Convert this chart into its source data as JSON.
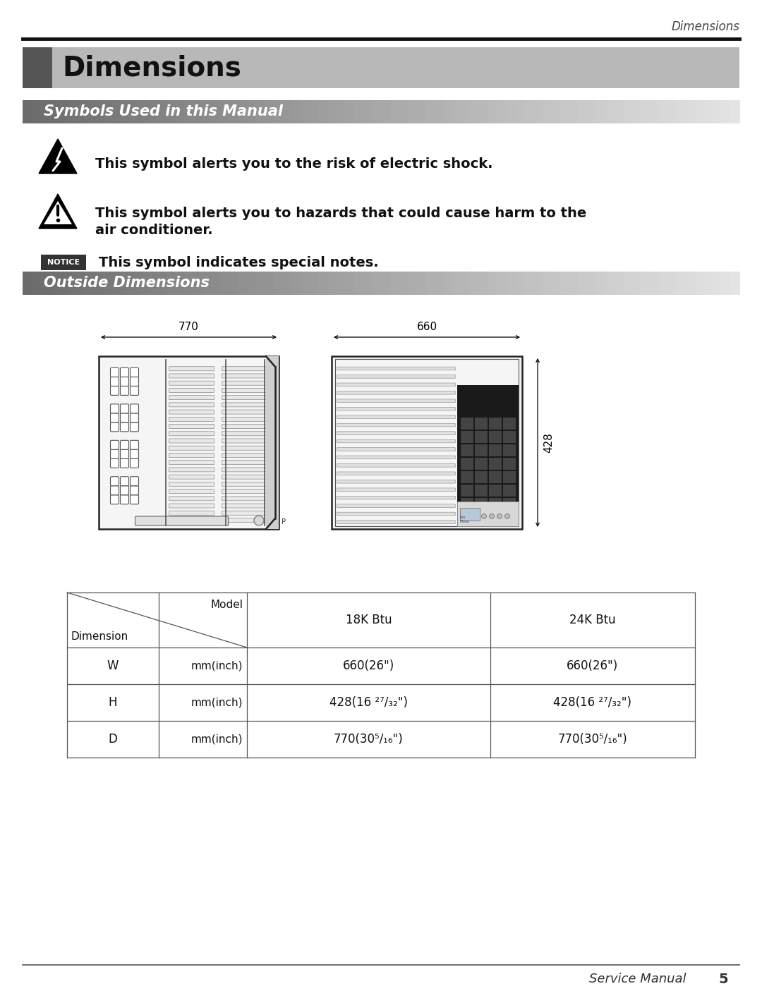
{
  "page_title": "Dimensions",
  "header_title": "Dimensions",
  "section1_title": "Symbols Used in this Manual",
  "symbol1_text": "This symbol alerts you to the risk of electric shock.",
  "symbol2_text1": "This symbol alerts you to hazards that could cause harm to the",
  "symbol2_text2": "air conditioner.",
  "notice_text": "This symbol indicates special notes.",
  "section2_title": "Outside Dimensions",
  "footer_text": "Service Manual",
  "footer_page": "5",
  "bg_color": "#ffffff",
  "table_border_color": "#555555",
  "notice_bg": "#333333",
  "notice_text_color": "#ffffff",
  "table_rows": [
    [
      "W",
      "mm(inch)",
      "660(26\")",
      "660(26\")"
    ],
    [
      "H",
      "mm(inch)",
      "428(16 ²⁷/₃₂\")",
      "428(16 ²⁷/₃₂\")"
    ],
    [
      "D",
      "mm(inch)",
      "770(30⁵/₁₆\")",
      "770(30⁵/₁₆\")"
    ]
  ]
}
